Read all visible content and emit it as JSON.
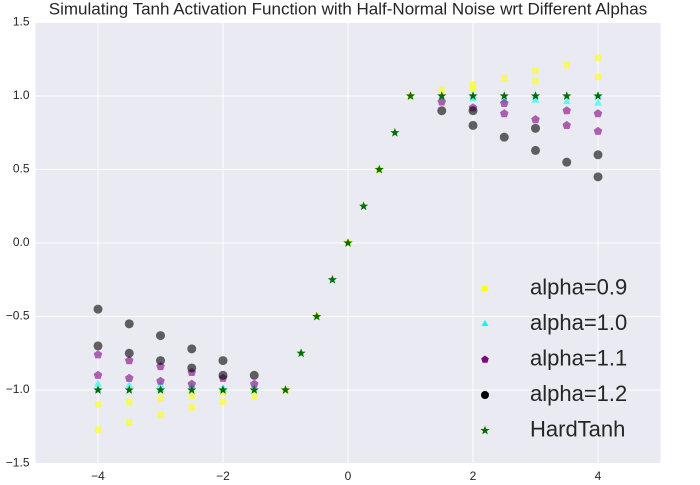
{
  "chart_data": {
    "type": "scatter",
    "title": "Simulating Tanh Activation Function with Half-Normal Noise wrt Different Alphas",
    "xlim": [
      -5,
      5
    ],
    "ylim": [
      -1.5,
      1.5
    ],
    "xticks": [
      {
        "value": -4,
        "label": "−4"
      },
      {
        "value": -2,
        "label": "−2"
      },
      0,
      2,
      4
    ],
    "yticks": [
      {
        "value": -1.5,
        "label": "−1.5"
      },
      {
        "value": -1.0,
        "label": "−1.0"
      },
      {
        "value": -0.5,
        "label": "−0.5"
      },
      {
        "value": 0,
        "label": "0.0"
      },
      0.5,
      {
        "value": 1.0,
        "label": "1.0"
      },
      1.5
    ],
    "grid": true,
    "legend": "lower right",
    "series": [
      {
        "name": "alpha=0.9",
        "color": "#ffff00",
        "marker": "square",
        "x": [
          -4,
          -3.5,
          -3,
          -2.5,
          -2,
          -1.5,
          -1,
          -4,
          -3.5,
          -3,
          -2.5,
          -2,
          -0.5,
          0,
          0.5,
          1,
          1.5,
          2,
          2.5,
          3,
          3.5,
          4,
          2,
          3,
          4
        ],
        "values": [
          -1.27,
          -1.22,
          -1.17,
          -1.12,
          -1.08,
          -1.04,
          -1.0,
          -1.1,
          -1.08,
          -1.06,
          -1.04,
          -1.02,
          -0.5,
          0,
          0.5,
          1.0,
          1.04,
          1.08,
          1.12,
          1.17,
          1.21,
          1.26,
          1.05,
          1.1,
          1.13
        ]
      },
      {
        "name": "alpha=1.0",
        "color": "#00ffff",
        "marker": "triangle",
        "x": [
          -4,
          -3.5,
          -3,
          -2.5,
          -2,
          -1.5,
          -4,
          -3,
          -2,
          1.5,
          2,
          2.5,
          3,
          3.5,
          4,
          2,
          3,
          4
        ],
        "values": [
          -0.96,
          -0.97,
          -0.97,
          -0.98,
          -0.99,
          -0.99,
          -1.0,
          -1.0,
          -1.0,
          0.99,
          0.98,
          0.97,
          0.97,
          0.96,
          0.95,
          1.0,
          1.0,
          1.0
        ]
      },
      {
        "name": "alpha=1.1",
        "color": "#800080",
        "marker": "pentagon",
        "x": [
          -4,
          -3.5,
          -3,
          -2.5,
          -2,
          -1.5,
          -4,
          -3.5,
          -3,
          -2.5,
          1.5,
          2,
          2.5,
          3,
          3.5,
          4,
          2.5,
          3.5,
          4
        ],
        "values": [
          -0.76,
          -0.8,
          -0.84,
          -0.88,
          -0.92,
          -0.96,
          -0.9,
          -0.92,
          -0.94,
          -0.96,
          0.96,
          0.92,
          0.88,
          0.84,
          0.8,
          0.76,
          0.95,
          0.9,
          0.88
        ]
      },
      {
        "name": "alpha=1.2",
        "color": "#000000",
        "marker": "circle",
        "x": [
          -4,
          -3.5,
          -3,
          -2.5,
          -2,
          -1.5,
          -4,
          -3.5,
          -3,
          -2.5,
          -2,
          1.5,
          2,
          2.5,
          3,
          3.5,
          4,
          2,
          3,
          4
        ],
        "values": [
          -0.45,
          -0.55,
          -0.63,
          -0.72,
          -0.8,
          -0.9,
          -0.7,
          -0.75,
          -0.8,
          -0.85,
          -0.9,
          0.9,
          0.8,
          0.72,
          0.63,
          0.55,
          0.45,
          0.9,
          0.78,
          0.6
        ]
      },
      {
        "name": "HardTanh",
        "color": "#007000",
        "marker": "star",
        "x": [
          -4,
          -3.5,
          -3,
          -2.5,
          -2,
          -1.5,
          -1,
          -0.75,
          -0.5,
          -0.25,
          0,
          0.25,
          0.5,
          0.75,
          1,
          1.5,
          2,
          2.5,
          3,
          3.5,
          4
        ],
        "values": [
          -1,
          -1,
          -1,
          -1,
          -1,
          -1,
          -1,
          -0.75,
          -0.5,
          -0.25,
          0,
          0.25,
          0.5,
          0.75,
          1,
          1,
          1,
          1,
          1,
          1,
          1
        ]
      }
    ]
  }
}
